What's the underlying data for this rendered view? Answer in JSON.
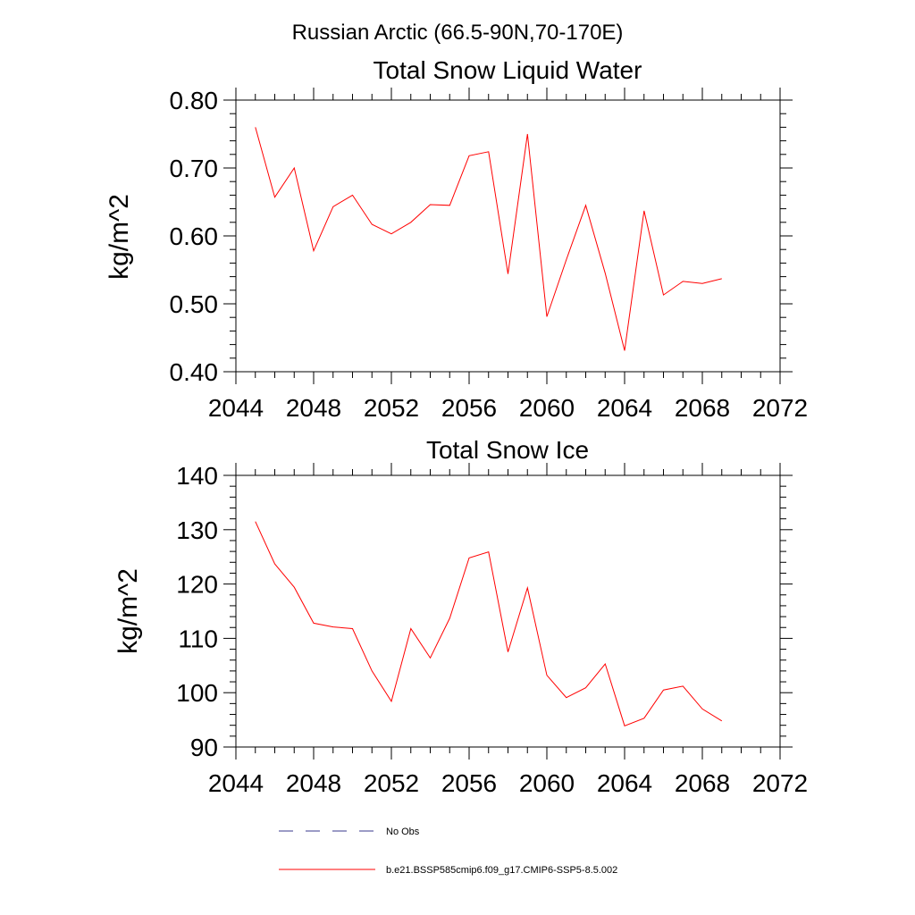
{
  "figure": {
    "title": "Russian Arctic (66.5-90N,70-170E)"
  },
  "chart_data": [
    {
      "type": "line",
      "title": "Total Snow Liquid Water",
      "xlabel": "",
      "ylabel": "kg/m^2",
      "xlim": [
        2044,
        2072
      ],
      "ylim": [
        0.4,
        0.8
      ],
      "x_ticks": [
        2044,
        2048,
        2052,
        2056,
        2060,
        2064,
        2068,
        2072
      ],
      "x_tick_labels": [
        "2044",
        "2048",
        "2052",
        "2056",
        "2060",
        "2064",
        "2068",
        "2072"
      ],
      "y_ticks": [
        0.4,
        0.5,
        0.6,
        0.7,
        0.8
      ],
      "y_tick_labels": [
        "0.40",
        "0.50",
        "0.60",
        "0.70",
        "0.80"
      ],
      "grid": false,
      "x": [
        2045,
        2046,
        2047,
        2048,
        2049,
        2050,
        2051,
        2052,
        2053,
        2054,
        2055,
        2056,
        2057,
        2058,
        2059,
        2060,
        2061,
        2062,
        2063,
        2064,
        2065,
        2066,
        2067,
        2068,
        2069
      ],
      "series": [
        {
          "name": "b.e21.BSSP585cmip6.f09_g17.CMIP6-SSP5-8.5.002",
          "color": "#ff0000",
          "values": [
            0.76,
            0.657,
            0.7,
            0.578,
            0.643,
            0.66,
            0.617,
            0.603,
            0.62,
            0.646,
            0.645,
            0.718,
            0.724,
            0.544,
            0.75,
            0.481,
            0.565,
            0.645,
            0.545,
            0.431,
            0.637,
            0.513,
            0.533,
            0.53,
            0.537
          ]
        }
      ]
    },
    {
      "type": "line",
      "title": "Total Snow Ice",
      "xlabel": "",
      "ylabel": "kg/m^2",
      "xlim": [
        2044,
        2072
      ],
      "ylim": [
        90,
        140
      ],
      "x_ticks": [
        2044,
        2048,
        2052,
        2056,
        2060,
        2064,
        2068,
        2072
      ],
      "x_tick_labels": [
        "2044",
        "2048",
        "2052",
        "2056",
        "2060",
        "2064",
        "2068",
        "2072"
      ],
      "y_ticks": [
        90,
        100,
        110,
        120,
        130,
        140
      ],
      "y_tick_labels": [
        "90",
        "100",
        "110",
        "120",
        "130",
        "140"
      ],
      "grid": false,
      "x": [
        2045,
        2046,
        2047,
        2048,
        2049,
        2050,
        2051,
        2052,
        2053,
        2054,
        2055,
        2056,
        2057,
        2058,
        2059,
        2060,
        2061,
        2062,
        2063,
        2064,
        2065,
        2066,
        2067,
        2068,
        2069
      ],
      "series": [
        {
          "name": "b.e21.BSSP585cmip6.f09_g17.CMIP6-SSP5-8.5.002",
          "color": "#ff0000",
          "values": [
            131.5,
            123.7,
            119.4,
            112.8,
            112.1,
            111.8,
            104.0,
            98.4,
            111.8,
            106.4,
            113.7,
            124.8,
            125.9,
            107.5,
            119.3,
            103.2,
            99.1,
            100.9,
            105.3,
            93.9,
            95.3,
            100.5,
            101.2,
            97.0,
            94.8
          ]
        }
      ]
    }
  ],
  "legend": {
    "placement": "bottom-center",
    "entries": [
      {
        "label": "No Obs",
        "style": "dashed",
        "color": "#3a3a8c"
      },
      {
        "label": "b.e21.BSSP585cmip6.f09_g17.CMIP6-SSP5-8.5.002",
        "style": "solid",
        "color": "#ff0000"
      }
    ]
  }
}
